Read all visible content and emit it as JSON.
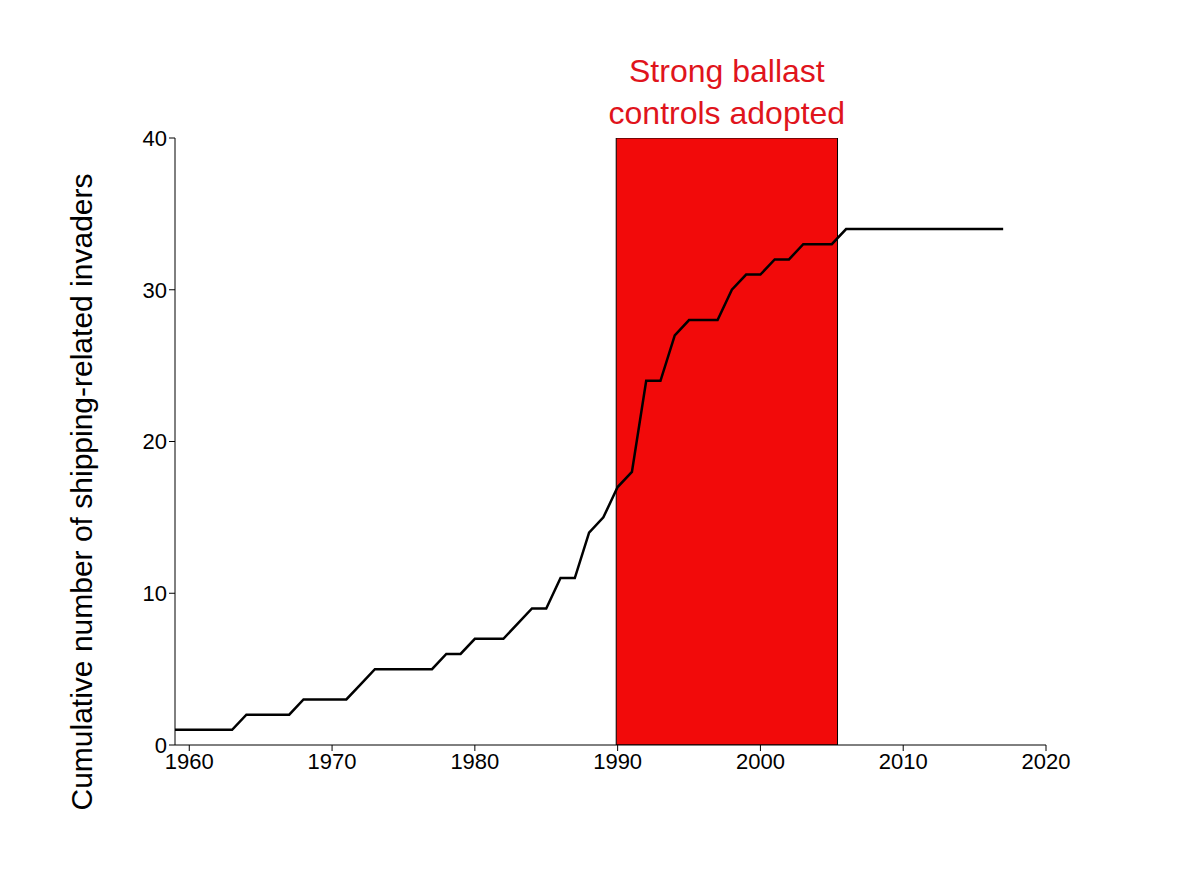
{
  "chart_data": {
    "type": "line",
    "y_label": "Cumulative number of shipping-related invaders",
    "x": [
      1959,
      1960,
      1961,
      1962,
      1963,
      1964,
      1965,
      1966,
      1967,
      1968,
      1969,
      1970,
      1971,
      1972,
      1973,
      1974,
      1975,
      1976,
      1977,
      1978,
      1979,
      1980,
      1981,
      1982,
      1983,
      1984,
      1985,
      1986,
      1987,
      1988,
      1989,
      1990,
      1991,
      1992,
      1993,
      1994,
      1995,
      1996,
      1997,
      1998,
      1999,
      2000,
      2001,
      2002,
      2003,
      2004,
      2005,
      2006,
      2007,
      2008,
      2009,
      2010,
      2011,
      2012,
      2013,
      2014,
      2015,
      2016,
      2017
    ],
    "values": [
      1,
      1,
      1,
      1,
      1,
      2,
      2,
      2,
      2,
      3,
      3,
      3,
      3,
      4,
      5,
      5,
      5,
      5,
      5,
      6,
      6,
      7,
      7,
      7,
      8,
      9,
      9,
      11,
      11,
      14,
      15,
      17,
      18,
      24,
      24,
      27,
      28,
      28,
      28,
      30,
      31,
      31,
      32,
      32,
      33,
      33,
      33,
      34,
      34,
      34,
      34,
      34,
      34,
      34,
      34,
      34,
      34,
      34,
      34
    ],
    "color": "#000000",
    "xlim": [
      1959,
      2020
    ],
    "xticks": [
      1960,
      1970,
      1980,
      1990,
      2000,
      2010,
      2020
    ],
    "ylim": [
      0,
      40
    ],
    "yticks": [
      0,
      10,
      20,
      30,
      40
    ],
    "grid": false,
    "highlight": {
      "x": [
        1989.9,
        2005.4
      ],
      "color": "#f20a0a",
      "annotation": [
        "Strong ballast",
        "controls adopted"
      ],
      "annotation_color": "#e0141c"
    }
  }
}
